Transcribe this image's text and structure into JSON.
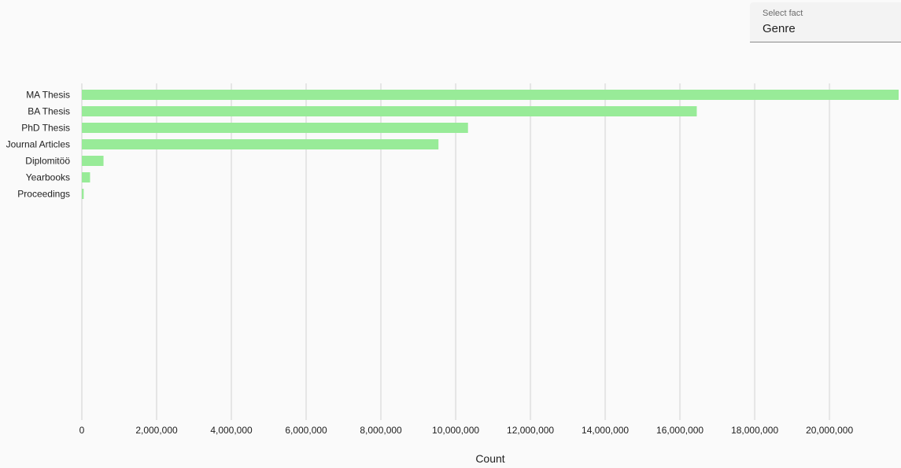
{
  "select": {
    "label": "Select fact",
    "value": "Genre"
  },
  "colors": {
    "bar": "#98eb98",
    "grid": "#e5e5e5",
    "text": "#212121",
    "background": "#fafafa"
  },
  "chart_data": {
    "type": "bar",
    "orientation": "horizontal",
    "categories": [
      "MA Thesis",
      "BA Thesis",
      "PhD Thesis",
      "Journal Articles",
      "Diplomitöö",
      "Yearbooks",
      "Proceedings"
    ],
    "values": [
      21850000,
      16450000,
      10330000,
      9540000,
      580000,
      220000,
      50000
    ],
    "xlabel": "Count",
    "ylabel": "",
    "xlim": [
      0,
      21850000
    ],
    "xticks": [
      0,
      2000000,
      4000000,
      6000000,
      8000000,
      10000000,
      12000000,
      14000000,
      16000000,
      18000000,
      20000000
    ],
    "xtick_labels": [
      "0",
      "2,000,000",
      "4,000,000",
      "6,000,000",
      "8,000,000",
      "10,000,000",
      "12,000,000",
      "14,000,000",
      "16,000,000",
      "18,000,000",
      "20,000,000"
    ],
    "grid": true,
    "legend": "none"
  }
}
